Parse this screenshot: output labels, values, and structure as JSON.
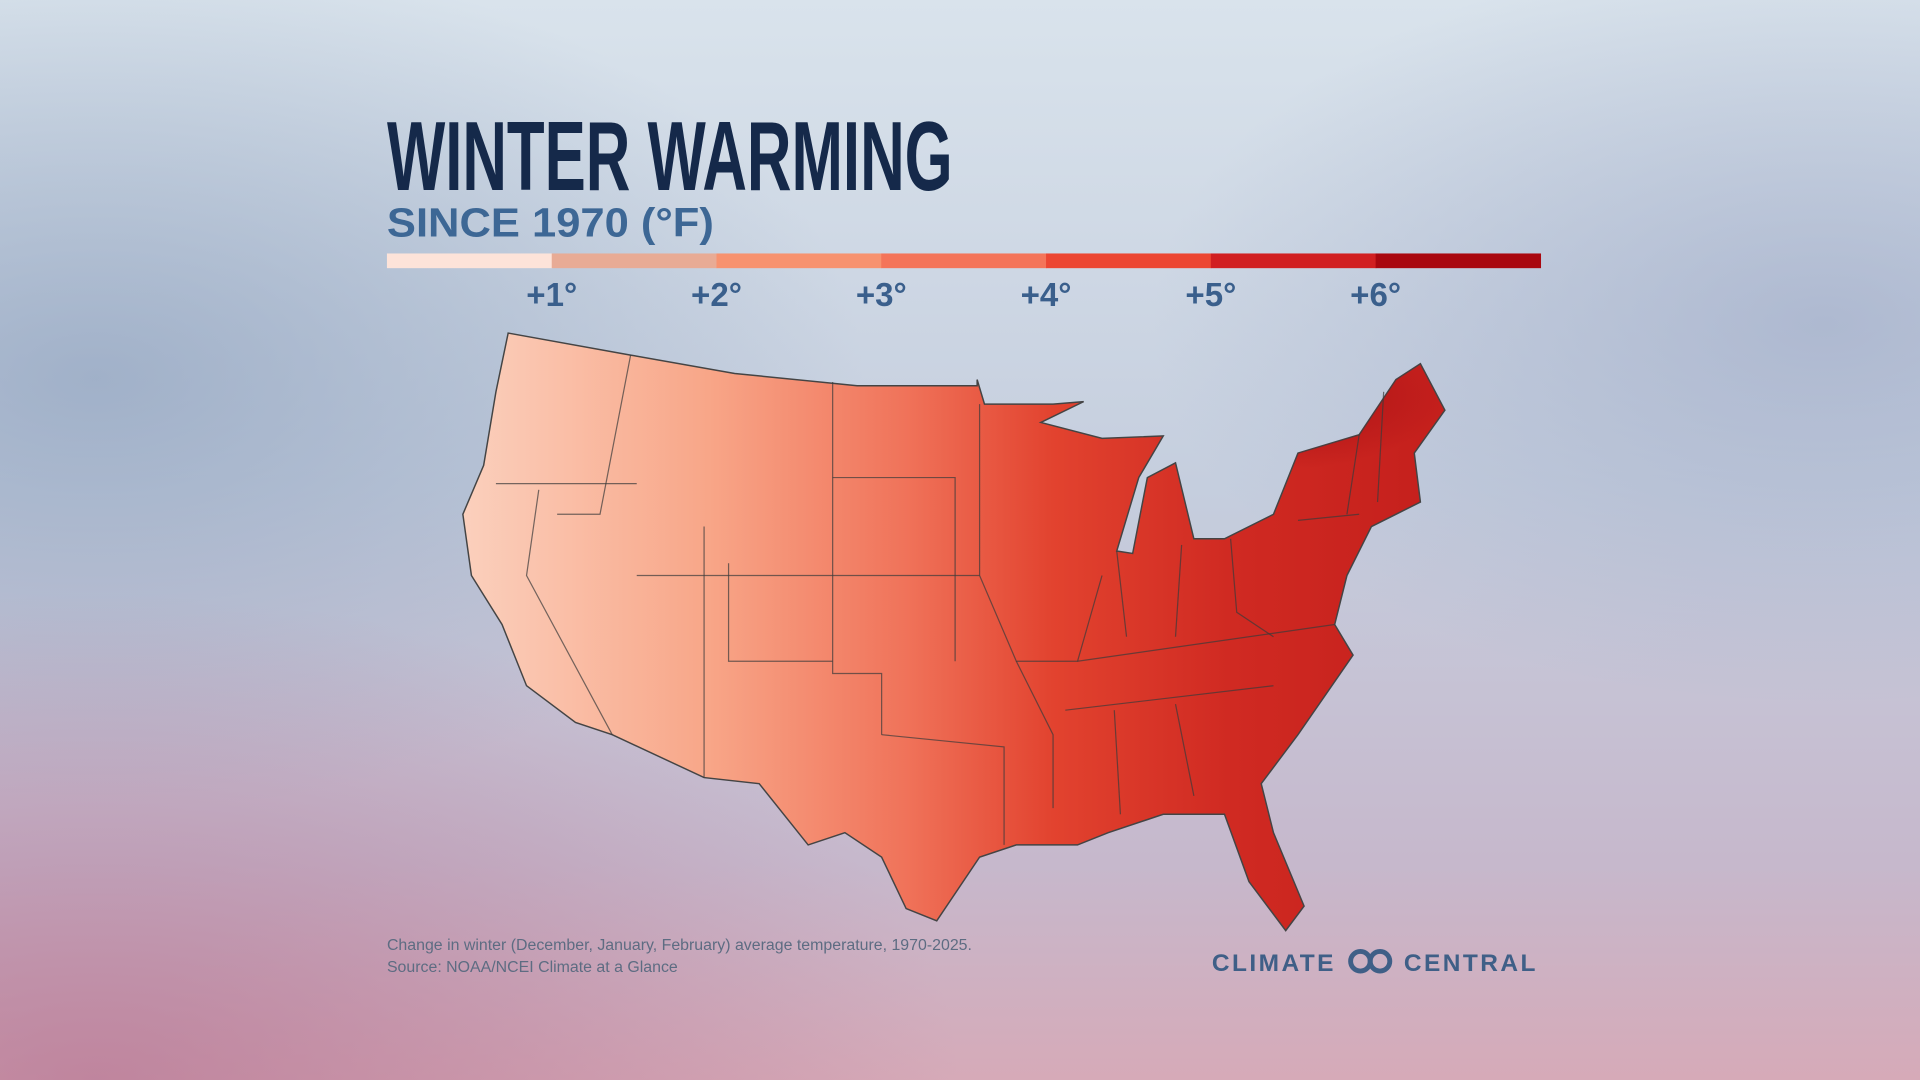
{
  "title": "WINTER WARMING",
  "subtitle": "SINCE 1970 (°F)",
  "legend": {
    "lim": [
      0,
      7
    ],
    "colors": [
      "#fde3d9",
      "#e8ab95",
      "#f7926f",
      "#f47459",
      "#ec4632",
      "#d11f21",
      "#a9070f"
    ],
    "ticks": [
      {
        "value": 1,
        "label": "+1°"
      },
      {
        "value": 2,
        "label": "+2°"
      },
      {
        "value": 3,
        "label": "+3°"
      },
      {
        "value": 4,
        "label": "+4°"
      },
      {
        "value": 5,
        "label": "+5°"
      },
      {
        "value": 6,
        "label": "+6°"
      }
    ]
  },
  "caption": [
    "Change in winter (December, January, February) average temperature, 1970-2025.",
    "Source: NOAA/NCEI Climate at a Glance"
  ],
  "logo": [
    "CLIMATE",
    "CENTRAL"
  ]
}
